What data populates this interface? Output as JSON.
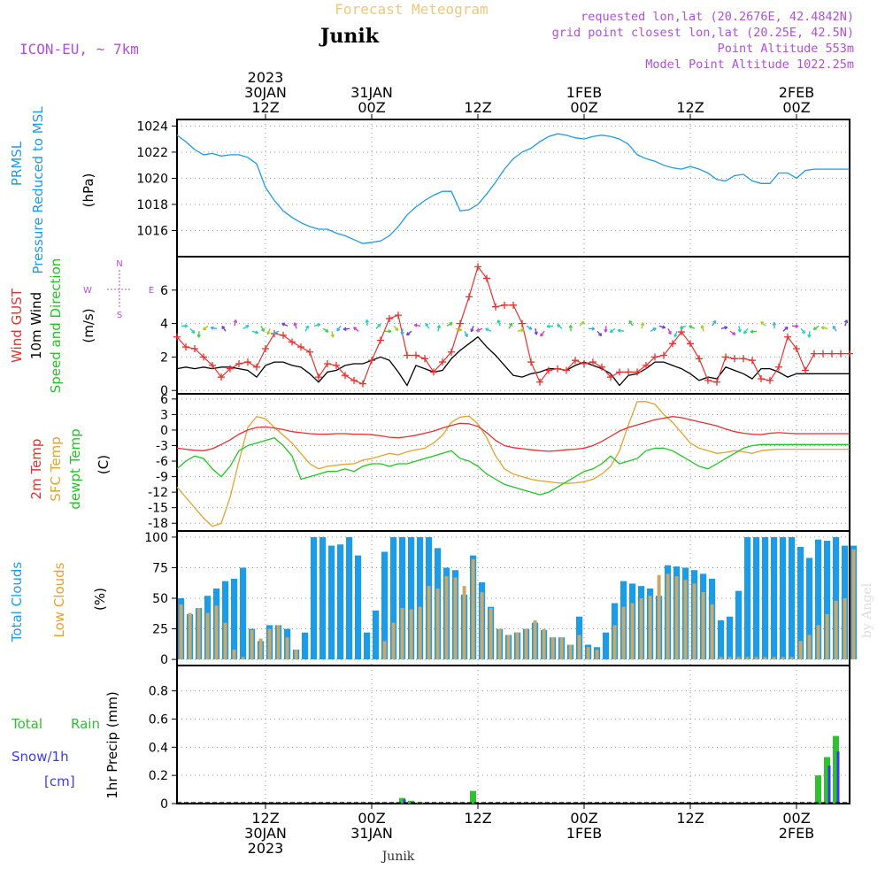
{
  "header": {
    "product": "Forecast Meteogram",
    "station": "Junik",
    "model": "ICON-EU, ~ 7km",
    "requested": "requested lon,lat (20.2676E, 42.4842N)",
    "gridpoint": "grid point closest lon,lat (20.25E, 42.5N)",
    "altitude": "Point Altitude 553m",
    "model_altitude": "Model Point Altitude 1022.25m"
  },
  "time_axis": {
    "top_ticks": [
      {
        "x": 10,
        "lines": [
          "2023",
          "30JAN",
          "12Z"
        ]
      },
      {
        "x": 22,
        "lines": [
          "31JAN",
          "00Z"
        ]
      },
      {
        "x": 34,
        "lines": [
          "12Z"
        ]
      },
      {
        "x": 46,
        "lines": [
          "1FEB",
          "00Z"
        ]
      },
      {
        "x": 58,
        "lines": [
          "12Z"
        ]
      },
      {
        "x": 70,
        "lines": [
          "2FEB",
          "00Z"
        ]
      }
    ],
    "bottom_ticks": [
      {
        "x": 10,
        "lines": [
          "12Z",
          "30JAN",
          "2023"
        ]
      },
      {
        "x": 22,
        "lines": [
          "00Z",
          "31JAN"
        ]
      },
      {
        "x": 34,
        "lines": [
          "12Z"
        ]
      },
      {
        "x": 46,
        "lines": [
          "00Z",
          "1FEB"
        ]
      },
      {
        "x": 58,
        "lines": [
          "12Z"
        ]
      },
      {
        "x": 70,
        "lines": [
          "00Z",
          "2FEB"
        ]
      }
    ]
  },
  "footer": {
    "station": "Junik",
    "watermark": "by Angel"
  },
  "panels": {
    "pressure": {
      "labels": [
        "PRMSL",
        "Pressure Reduced to MSL"
      ],
      "unit": "(hPa)"
    },
    "wind": {
      "labels": [
        "Wind GUST",
        "10m Wind",
        "Speed and Direction"
      ],
      "unit": "(m/s)",
      "compass": {
        "n": "N",
        "s": "S",
        "w": "W",
        "e": "E"
      }
    },
    "temp": {
      "labels": [
        "2m Temp",
        "SFC Temp",
        "dewpt Temp"
      ],
      "unit": "(C)"
    },
    "clouds": {
      "labels": [
        "Total Clouds",
        "Low Clouds"
      ],
      "unit": "(%)"
    },
    "precip": {
      "labels": [
        "Total",
        "Rain",
        "Snow/1h",
        "[cm]"
      ],
      "ylabel": "1hr Precip (mm)"
    }
  },
  "colors": {
    "pressure": "#1e9be6",
    "gust": "#e8302e",
    "wind": "#000000",
    "t2m": "#e8302e",
    "sfc": "#e3a32d",
    "dewpt": "#22c422",
    "total_clouds": "#1e9be6",
    "low_clouds": "#c9a86a",
    "rain": "#30c030",
    "snow": "#3a3af0",
    "title": "#f0c87a",
    "purple": "#b050d8",
    "grid": "#9a9a9a"
  },
  "chart_data": [
    {
      "type": "line",
      "title": "PRMSL",
      "ylabel": "(hPa)",
      "xlim": [
        0,
        76
      ],
      "ylim": [
        1014,
        1024.5
      ],
      "yticks": [
        1016,
        1018,
        1020,
        1022,
        1024
      ],
      "grid": true,
      "series": [
        {
          "name": "PRMSL",
          "values": [
            1023.3,
            1022.8,
            1022.2,
            1021.8,
            1021.9,
            1021.7,
            1021.8,
            1021.8,
            1021.6,
            1021.1,
            1019.3,
            1018.3,
            1017.5,
            1017.0,
            1016.6,
            1016.3,
            1016.1,
            1016.1,
            1015.8,
            1015.6,
            1015.3,
            1015.0,
            1015.1,
            1015.2,
            1015.6,
            1016.3,
            1017.2,
            1017.8,
            1018.3,
            1018.7,
            1019.0,
            1019.0,
            1017.5,
            1017.6,
            1018.0,
            1018.8,
            1019.7,
            1020.7,
            1021.5,
            1022.0,
            1022.3,
            1022.8,
            1023.2,
            1023.4,
            1023.3,
            1023.1,
            1023.0,
            1023.2,
            1023.3,
            1023.2,
            1023.0,
            1022.6,
            1021.8,
            1021.5,
            1021.3,
            1021.0,
            1020.8,
            1020.7,
            1020.9,
            1020.7,
            1020.4,
            1019.9,
            1019.8,
            1020.2,
            1020.3,
            1019.8,
            1019.6,
            1019.6,
            1020.4,
            1020.4,
            1020.0,
            1020.6,
            1020.7,
            1020.7,
            1020.7,
            1020.7,
            1020.7
          ]
        }
      ]
    },
    {
      "type": "line",
      "title": "Wind GUST / 10m Wind Speed and Direction",
      "ylabel": "(m/s)",
      "xlim": [
        0,
        76
      ],
      "ylim": [
        -0.2,
        8
      ],
      "yticks": [
        0,
        2,
        4,
        6
      ],
      "grid": true,
      "series": [
        {
          "name": "Wind GUST",
          "values": [
            3.2,
            2.6,
            2.5,
            2.0,
            1.5,
            0.8,
            1.3,
            1.6,
            1.7,
            1.4,
            2.5,
            3.4,
            3.3,
            2.9,
            2.6,
            2.3,
            0.8,
            1.6,
            1.5,
            0.9,
            0.6,
            0.4,
            1.8,
            3.0,
            4.3,
            4.5,
            2.1,
            2.1,
            1.9,
            1.1,
            1.7,
            2.3,
            4.0,
            5.6,
            7.4,
            6.7,
            5.0,
            5.1,
            5.1,
            4.0,
            1.7,
            0.5,
            1.2,
            1.3,
            1.2,
            1.8,
            1.6,
            1.7,
            1.4,
            0.8,
            1.1,
            1.1,
            1.1,
            1.5,
            2.0,
            2.1,
            2.8,
            3.5,
            2.8,
            1.9,
            0.6,
            0.5,
            2.0,
            1.9,
            1.9,
            1.8,
            0.7,
            0.6,
            1.4,
            3.2,
            2.5,
            1.2,
            2.2,
            2.2,
            2.2,
            2.2,
            2.2
          ]
        },
        {
          "name": "10m Wind",
          "values": [
            1.3,
            1.4,
            1.3,
            1.4,
            1.3,
            1.4,
            1.4,
            1.3,
            1.2,
            0.8,
            1.5,
            1.7,
            1.7,
            1.5,
            1.4,
            1.0,
            0.5,
            1.1,
            1.2,
            1.5,
            1.6,
            1.6,
            1.8,
            2.0,
            1.8,
            1.1,
            0.3,
            1.5,
            1.3,
            1.1,
            1.2,
            1.9,
            2.4,
            2.8,
            3.2,
            2.6,
            2.1,
            1.5,
            0.9,
            0.8,
            1.0,
            1.1,
            1.3,
            1.3,
            1.2,
            1.5,
            1.7,
            1.5,
            1.3,
            1.0,
            0.3,
            0.9,
            1.0,
            1.3,
            1.7,
            1.7,
            1.5,
            1.3,
            1.0,
            0.6,
            0.8,
            0.7,
            1.4,
            1.2,
            1.0,
            0.7,
            1.3,
            1.3,
            1.1,
            0.8,
            1.0,
            1.0,
            1.0,
            1.0,
            1.0,
            1.0,
            1.0
          ]
        }
      ]
    },
    {
      "type": "line",
      "title": "2m Temp / SFC Temp / dewpt Temp",
      "ylabel": "(C)",
      "xlim": [
        0,
        76
      ],
      "ylim": [
        -19.5,
        7
      ],
      "yticks": [
        6,
        3,
        0,
        -3,
        -6,
        -9,
        -12,
        -15,
        -18
      ],
      "grid": true,
      "series": [
        {
          "name": "2m Temp",
          "values": [
            -3.5,
            -3.7,
            -3.9,
            -4.0,
            -3.6,
            -2.8,
            -1.9,
            -0.8,
            0.0,
            0.5,
            0.6,
            0.4,
            0.1,
            -0.3,
            -0.5,
            -0.7,
            -0.8,
            -0.8,
            -0.7,
            -0.7,
            -0.8,
            -0.8,
            -0.9,
            -1.1,
            -1.4,
            -1.5,
            -1.3,
            -1.0,
            -0.6,
            -0.2,
            0.4,
            0.9,
            1.3,
            1.2,
            0.7,
            -0.5,
            -2.0,
            -3.0,
            -3.4,
            -3.6,
            -3.8,
            -4.0,
            -4.1,
            -4.0,
            -3.8,
            -3.7,
            -3.5,
            -3.0,
            -2.2,
            -1.2,
            -0.2,
            0.5,
            1.0,
            1.5,
            2.0,
            2.3,
            2.6,
            2.4,
            2.0,
            1.6,
            1.2,
            0.8,
            0.2,
            -0.3,
            -0.6,
            -0.8,
            -0.9,
            -0.6,
            -0.5,
            -0.6,
            -0.7,
            -0.7,
            -0.7,
            -0.7,
            -0.7,
            -0.7,
            -0.7
          ]
        },
        {
          "name": "SFC Temp",
          "values": [
            -11.0,
            -13.0,
            -15.0,
            -17.0,
            -18.6,
            -18.0,
            -13.0,
            -6.0,
            0.5,
            2.6,
            2.2,
            0.5,
            -1.0,
            -2.5,
            -4.5,
            -6.5,
            -7.5,
            -7.0,
            -6.8,
            -6.6,
            -6.5,
            -5.8,
            -5.5,
            -5.0,
            -4.5,
            -4.8,
            -4.2,
            -3.8,
            -3.5,
            -2.5,
            -1.0,
            1.5,
            2.5,
            2.7,
            1.2,
            -1.5,
            -5.0,
            -7.5,
            -8.5,
            -9.0,
            -9.5,
            -9.8,
            -10.0,
            -10.2,
            -10.3,
            -10.2,
            -10.0,
            -9.5,
            -8.5,
            -7.0,
            -4.0,
            1.0,
            5.5,
            5.5,
            5.0,
            3.0,
            1.5,
            -0.5,
            -2.5,
            -3.5,
            -4.0,
            -4.5,
            -4.3,
            -4.0,
            -4.2,
            -4.5,
            -4.0,
            -3.8,
            -3.7,
            -3.7,
            -3.7,
            -3.7,
            -3.7,
            -3.7,
            -3.7,
            -3.7,
            -3.7
          ]
        },
        {
          "name": "dewpt Temp",
          "values": [
            -7.5,
            -6.0,
            -5.0,
            -5.5,
            -7.5,
            -9.0,
            -7.0,
            -4.0,
            -3.0,
            -2.5,
            -2.0,
            -1.5,
            -3.0,
            -5.0,
            -9.5,
            -9.0,
            -8.5,
            -8.0,
            -8.0,
            -7.5,
            -8.0,
            -7.0,
            -6.5,
            -6.5,
            -7.0,
            -6.5,
            -6.5,
            -6.0,
            -5.5,
            -5.0,
            -4.5,
            -4.0,
            -5.5,
            -6.0,
            -7.0,
            -8.5,
            -9.5,
            -10.5,
            -11.0,
            -11.5,
            -12.0,
            -12.5,
            -12.0,
            -11.0,
            -10.0,
            -9.0,
            -8.0,
            -7.5,
            -6.5,
            -5.0,
            -6.5,
            -6.0,
            -5.5,
            -4.0,
            -3.5,
            -3.5,
            -4.0,
            -5.0,
            -6.0,
            -7.0,
            -7.5,
            -6.5,
            -5.5,
            -4.5,
            -3.5,
            -3.0,
            -2.8,
            -2.8,
            -2.8,
            -2.8,
            -2.8,
            -2.8,
            -2.8,
            -2.8,
            -2.8,
            -2.8,
            -2.8
          ]
        }
      ]
    },
    {
      "type": "bar",
      "title": "Total Clouds / Low Clouds",
      "ylabel": "(%)",
      "xlim": [
        0,
        76
      ],
      "ylim": [
        -5,
        105
      ],
      "yticks": [
        0,
        25,
        50,
        75,
        100
      ],
      "grid": true,
      "series": [
        {
          "name": "Total Clouds",
          "values": [
            50,
            37,
            42,
            52,
            58,
            64,
            66,
            75,
            25,
            15,
            28,
            28,
            25,
            8,
            22,
            100,
            100,
            93,
            94,
            100,
            85,
            22,
            40,
            88,
            100,
            100,
            100,
            100,
            100,
            91,
            75,
            73,
            53,
            85,
            63,
            43,
            25,
            20,
            22,
            25,
            30,
            24,
            18,
            18,
            12,
            35,
            12,
            10,
            22,
            46,
            64,
            62,
            60,
            58,
            52,
            77,
            76,
            75,
            73,
            70,
            66,
            32,
            35,
            56,
            100,
            100,
            100,
            100,
            100,
            100,
            92,
            83,
            98,
            97,
            100,
            93,
            93
          ]
        },
        {
          "name": "Low Clouds",
          "values": [
            45,
            38,
            42,
            38,
            44,
            30,
            8,
            2,
            24,
            17,
            25,
            28,
            18,
            8,
            0,
            0,
            0,
            0,
            0,
            0,
            0,
            0,
            0,
            15,
            30,
            42,
            41,
            43,
            60,
            58,
            68,
            67,
            60,
            82,
            55,
            42,
            25,
            20,
            22,
            25,
            32,
            25,
            18,
            18,
            12,
            20,
            10,
            8,
            0,
            28,
            43,
            46,
            50,
            52,
            69,
            70,
            68,
            65,
            62,
            55,
            45,
            2,
            2,
            2,
            2,
            2,
            2,
            2,
            2,
            2,
            15,
            20,
            28,
            37,
            48,
            50,
            90
          ]
        }
      ]
    },
    {
      "type": "bar",
      "title": "Total Rain Snow/1h",
      "ylabel": "1hr Precip (mm)",
      "xlim": [
        0,
        76
      ],
      "ylim": [
        0,
        0.98
      ],
      "yticks": [
        0,
        0.2,
        0.4,
        0.6,
        0.8
      ],
      "grid": true,
      "series": [
        {
          "name": "Total",
          "values": [
            0,
            0,
            0,
            0,
            0,
            0,
            0,
            0,
            0,
            0,
            0,
            0,
            0,
            0,
            0,
            0,
            0,
            0,
            0,
            0,
            0,
            0,
            0,
            0,
            0,
            0.04,
            0.02,
            0.01,
            0,
            0,
            0,
            0,
            0,
            0.09,
            0,
            0,
            0,
            0,
            0,
            0,
            0,
            0,
            0,
            0,
            0,
            0,
            0,
            0,
            0,
            0,
            0,
            0,
            0,
            0,
            0,
            0,
            0,
            0,
            0,
            0,
            0,
            0,
            0,
            0,
            0,
            0,
            0,
            0,
            0,
            0,
            0,
            0,
            0.2,
            0.33,
            0.48,
            0,
            0
          ]
        },
        {
          "name": "Snow/1h",
          "values": [
            0,
            0,
            0,
            0,
            0,
            0,
            0,
            0,
            0,
            0,
            0,
            0,
            0,
            0,
            0,
            0,
            0,
            0,
            0,
            0,
            0,
            0,
            0,
            0,
            0,
            0.03,
            0.01,
            0,
            0,
            0,
            0,
            0,
            0,
            0,
            0,
            0,
            0,
            0,
            0,
            0,
            0,
            0,
            0,
            0,
            0,
            0,
            0,
            0,
            0,
            0,
            0,
            0,
            0,
            0,
            0,
            0,
            0,
            0,
            0,
            0,
            0,
            0,
            0,
            0,
            0,
            0,
            0,
            0,
            0,
            0,
            0,
            0,
            0,
            0.27,
            0.37,
            0,
            0
          ]
        }
      ]
    }
  ]
}
